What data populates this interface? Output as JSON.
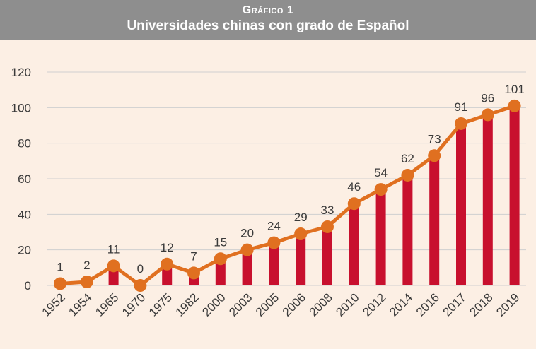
{
  "header": {
    "kicker": "Gráfico 1",
    "title": "Universidades chinas con grado de Español"
  },
  "colors": {
    "header_bg": "#8e8e8e",
    "page_bg": "#fcefe4",
    "bar": "#c8102e",
    "line": "#e07020",
    "grid": "#cfcfcf"
  },
  "chart_data": {
    "type": "bar",
    "overlay": "line",
    "title": "Universidades chinas con grado de Español",
    "categories": [
      "1952",
      "1954",
      "1965",
      "1970",
      "1975",
      "1982",
      "2000",
      "2003",
      "2005",
      "2006",
      "2008",
      "2010",
      "2012",
      "2014",
      "2016",
      "2017",
      "2018",
      "2019"
    ],
    "values": [
      1,
      2,
      11,
      0,
      12,
      7,
      15,
      20,
      24,
      29,
      33,
      46,
      54,
      62,
      73,
      91,
      96,
      101
    ],
    "data_labels": [
      "1",
      "2",
      "11",
      "0",
      "12",
      "7",
      "15",
      "20",
      "24",
      "29",
      "33",
      "46",
      "54",
      "62",
      "73",
      "91",
      "96",
      "101"
    ],
    "yticks": [
      "0",
      "20",
      "40",
      "60",
      "80",
      "100",
      "120"
    ],
    "ylim": [
      0,
      120
    ],
    "grid": true,
    "legend": "none"
  }
}
